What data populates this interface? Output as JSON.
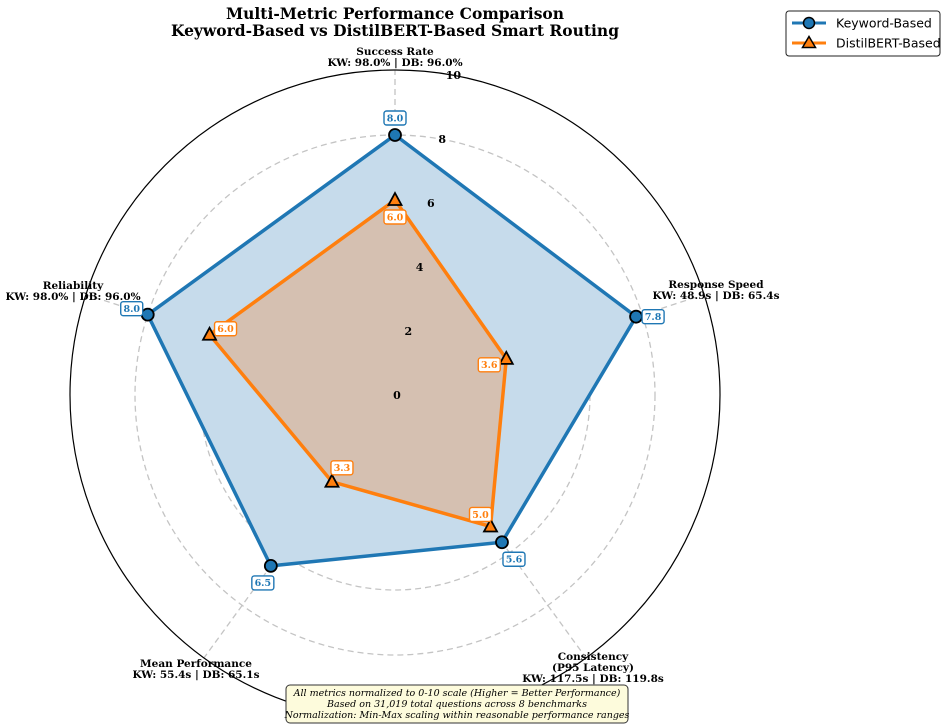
{
  "chart_data": {
    "type": "radar",
    "title": "Multi-Metric Performance Comparison",
    "subtitle": "Keyword-Based vs DistilBERT-Based Smart Routing",
    "axes": [
      {
        "key": "success",
        "lines": [
          "Success Rate",
          "KW: 98.0% | DB: 96.0%"
        ]
      },
      {
        "key": "speed",
        "lines": [
          "Response Speed",
          "KW: 48.9s | DB: 65.4s"
        ]
      },
      {
        "key": "consistency",
        "lines": [
          "Consistency",
          "(P95 Latency)",
          "KW: 117.5s | DB: 119.8s"
        ]
      },
      {
        "key": "mean",
        "lines": [
          "Mean Performance",
          "KW: 55.4s | DB: 65.1s"
        ]
      },
      {
        "key": "reliability",
        "lines": [
          "Reliability",
          "KW: 98.0% | DB: 96.0%"
        ]
      }
    ],
    "rlim": [
      0,
      10
    ],
    "rticks": [
      "0",
      "2",
      "4",
      "6",
      "8",
      "10"
    ],
    "series": [
      {
        "name": "Keyword-Based",
        "values": [
          8.0,
          7.8,
          5.6,
          6.5,
          8.0
        ],
        "labels": [
          "8.0",
          "7.8",
          "5.6",
          "6.5",
          "8.0"
        ],
        "color": "#1f77b4",
        "fill": "#c6dbeb",
        "marker": "circle"
      },
      {
        "name": "DistilBERT-Based",
        "values": [
          6.0,
          3.6,
          5.0,
          3.3,
          6.0
        ],
        "labels": [
          "6.0",
          "3.6",
          "5.0",
          "3.3",
          "6.0"
        ],
        "color": "#ff7f0e",
        "fill": "#d8b9a0",
        "marker": "triangle"
      }
    ],
    "grid": true,
    "legend_position": "top-right",
    "note": [
      "All metrics normalized to 0-10 scale (Higher = Better Performance)",
      "Based on 31,019 total questions across 8 benchmarks",
      "Normalization: Min-Max scaling within reasonable performance ranges"
    ],
    "note_bg": "#fdfbdc"
  }
}
